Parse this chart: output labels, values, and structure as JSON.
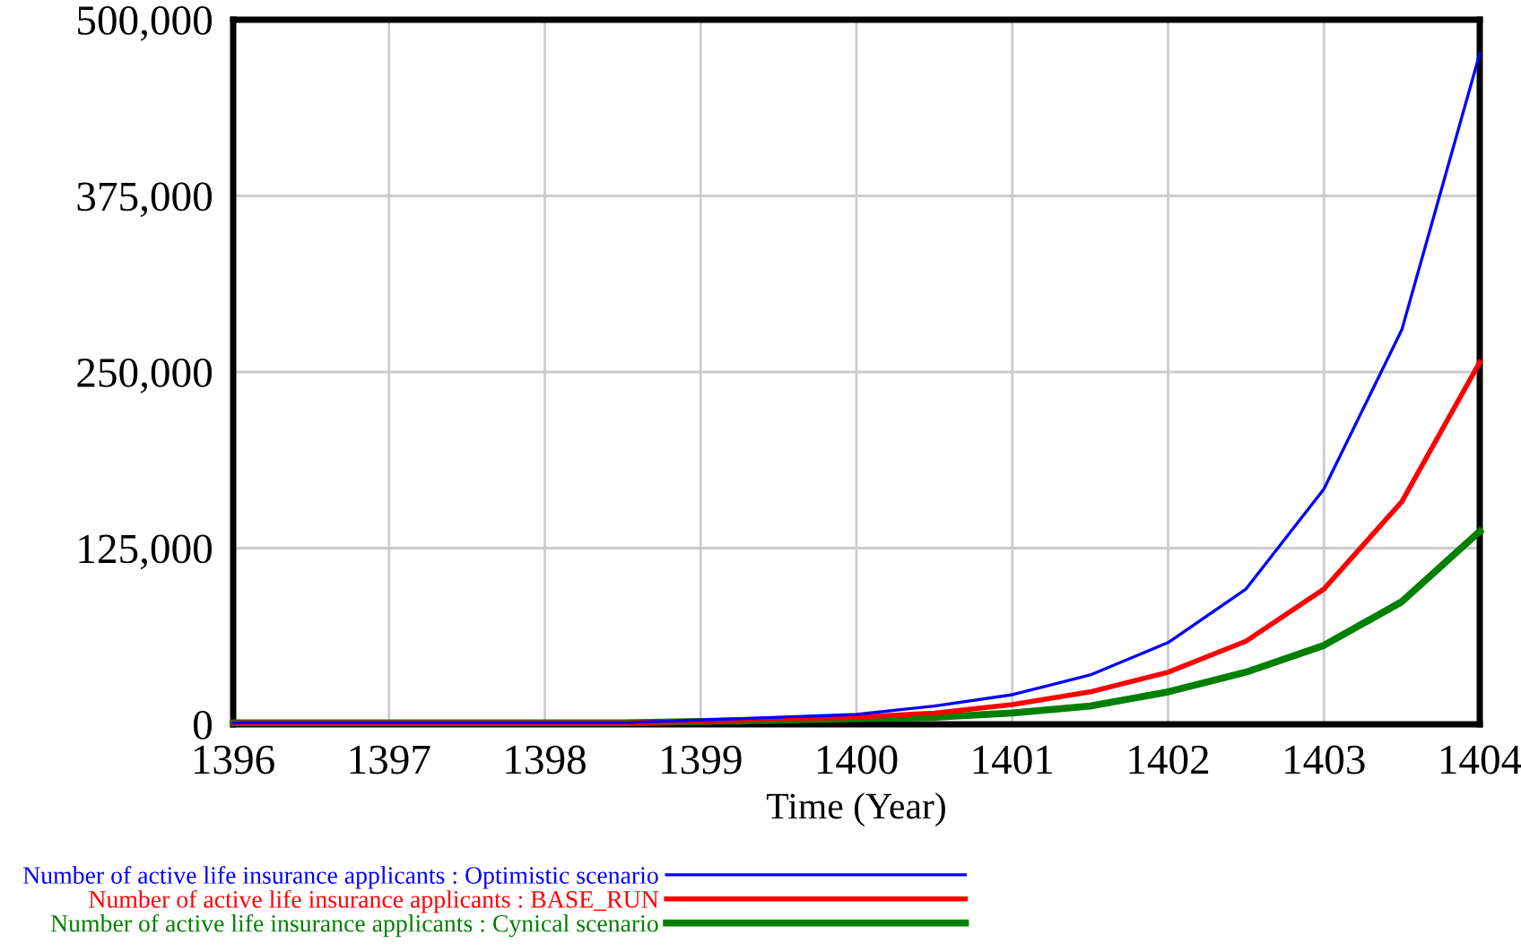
{
  "chart_data": {
    "type": "line",
    "xlabel": "Time (Year)",
    "x": [
      1396,
      1396.5,
      1397,
      1397.5,
      1398,
      1398.5,
      1399,
      1399.5,
      1400,
      1400.5,
      1401,
      1401.5,
      1402,
      1402.5,
      1403,
      1403.5,
      1404
    ],
    "series": [
      {
        "name": "Number of active life insurance applicants : Optimistic scenario",
        "color": "#0000ff",
        "values": [
          1000,
          1000,
          1000,
          1000,
          1000,
          1000,
          3000,
          5000,
          7000,
          13000,
          21000,
          35000,
          58000,
          96000,
          167000,
          280000,
          476000
        ]
      },
      {
        "name": "Number of active life insurance applicants : BASE_RUN",
        "color": "#ff0000",
        "values": [
          1000,
          1000,
          1000,
          1000,
          1000,
          1000,
          2000,
          4000,
          5000,
          8000,
          14000,
          23000,
          37000,
          59000,
          96000,
          158000,
          257000
        ]
      },
      {
        "name": "Number of active life insurance applicants : Cynical scenario",
        "color": "#008000",
        "values": [
          1000,
          1000,
          1000,
          1000,
          1000,
          1000,
          2000,
          3000,
          4000,
          5000,
          8000,
          13000,
          23000,
          37000,
          56000,
          87000,
          137000
        ]
      }
    ],
    "xlim": [
      1396,
      1404
    ],
    "xticks": [
      1396,
      1397,
      1398,
      1399,
      1400,
      1401,
      1402,
      1403,
      1404
    ],
    "ylim": [
      0,
      500000
    ],
    "yticks": [
      {
        "value": 0,
        "label": "0"
      },
      {
        "value": 125000,
        "label": "125,000"
      },
      {
        "value": 250000,
        "label": "250,000"
      },
      {
        "value": 375000,
        "label": "375,000"
      },
      {
        "value": 500000,
        "label": "500,000"
      }
    ],
    "grid": true,
    "legend": "bottom",
    "line_style": "solid"
  }
}
